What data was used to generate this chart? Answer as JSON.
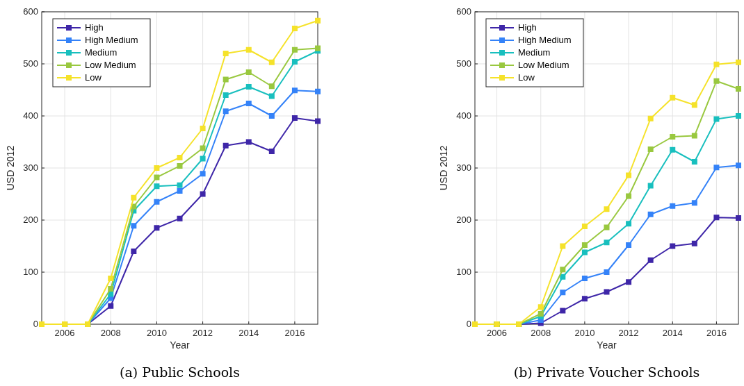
{
  "chart_data": [
    {
      "type": "line",
      "title": "(a) Public Schools",
      "xlabel": "Year",
      "ylabel": "USD 2012",
      "x": [
        2005,
        2006,
        2007,
        2008,
        2009,
        2010,
        2011,
        2012,
        2013,
        2014,
        2015,
        2016,
        2017
      ],
      "series": [
        {
          "name": "High",
          "color": "#3e26a8",
          "values": [
            0,
            0,
            0,
            35,
            140,
            185,
            203,
            250,
            343,
            350,
            332,
            396,
            390
          ]
        },
        {
          "name": "High Medium",
          "color": "#3482f8",
          "values": [
            0,
            0,
            0,
            50,
            189,
            235,
            256,
            289,
            409,
            424,
            400,
            449,
            447
          ]
        },
        {
          "name": "Medium",
          "color": "#18bfbe",
          "values": [
            0,
            0,
            0,
            58,
            218,
            265,
            267,
            318,
            440,
            456,
            438,
            504,
            525
          ]
        },
        {
          "name": "Low Medium",
          "color": "#99c83f",
          "values": [
            0,
            0,
            0,
            68,
            226,
            282,
            304,
            338,
            470,
            484,
            457,
            527,
            530
          ]
        },
        {
          "name": "Low",
          "color": "#f5e22a",
          "values": [
            0,
            0,
            0,
            88,
            243,
            300,
            320,
            376,
            520,
            527,
            503,
            568,
            583
          ]
        }
      ],
      "xlim": [
        2005,
        2017
      ],
      "xticks": [
        2006,
        2008,
        2010,
        2012,
        2014,
        2016
      ],
      "ylim": [
        0,
        600
      ],
      "yticks": [
        0,
        100,
        200,
        300,
        400,
        500,
        600
      ],
      "grid": true,
      "legend": "top left",
      "marker": "square"
    },
    {
      "type": "line",
      "title": "(b) Private Voucher Schools",
      "xlabel": "Year",
      "ylabel": "USD 2012",
      "x": [
        2005,
        2006,
        2007,
        2008,
        2009,
        2010,
        2011,
        2012,
        2013,
        2014,
        2015,
        2016,
        2017
      ],
      "series": [
        {
          "name": "High",
          "color": "#3e26a8",
          "values": [
            0,
            0,
            0,
            2,
            26,
            49,
            62,
            81,
            123,
            150,
            155,
            205,
            204
          ]
        },
        {
          "name": "High Medium",
          "color": "#3482f8",
          "values": [
            0,
            0,
            0,
            8,
            61,
            88,
            100,
            152,
            211,
            227,
            233,
            301,
            305
          ]
        },
        {
          "name": "Medium",
          "color": "#18bfbe",
          "values": [
            0,
            0,
            0,
            15,
            91,
            138,
            157,
            193,
            266,
            335,
            312,
            394,
            400
          ]
        },
        {
          "name": "Low Medium",
          "color": "#99c83f",
          "values": [
            0,
            0,
            0,
            20,
            105,
            152,
            186,
            246,
            336,
            360,
            362,
            467,
            452
          ]
        },
        {
          "name": "Low",
          "color": "#f5e22a",
          "values": [
            0,
            0,
            0,
            33,
            150,
            188,
            221,
            286,
            395,
            435,
            421,
            499,
            503
          ]
        }
      ],
      "xlim": [
        2005,
        2017
      ],
      "xticks": [
        2006,
        2008,
        2010,
        2012,
        2014,
        2016
      ],
      "ylim": [
        0,
        600
      ],
      "yticks": [
        0,
        100,
        200,
        300,
        400,
        500,
        600
      ],
      "grid": true,
      "legend": "top left",
      "marker": "square"
    }
  ]
}
